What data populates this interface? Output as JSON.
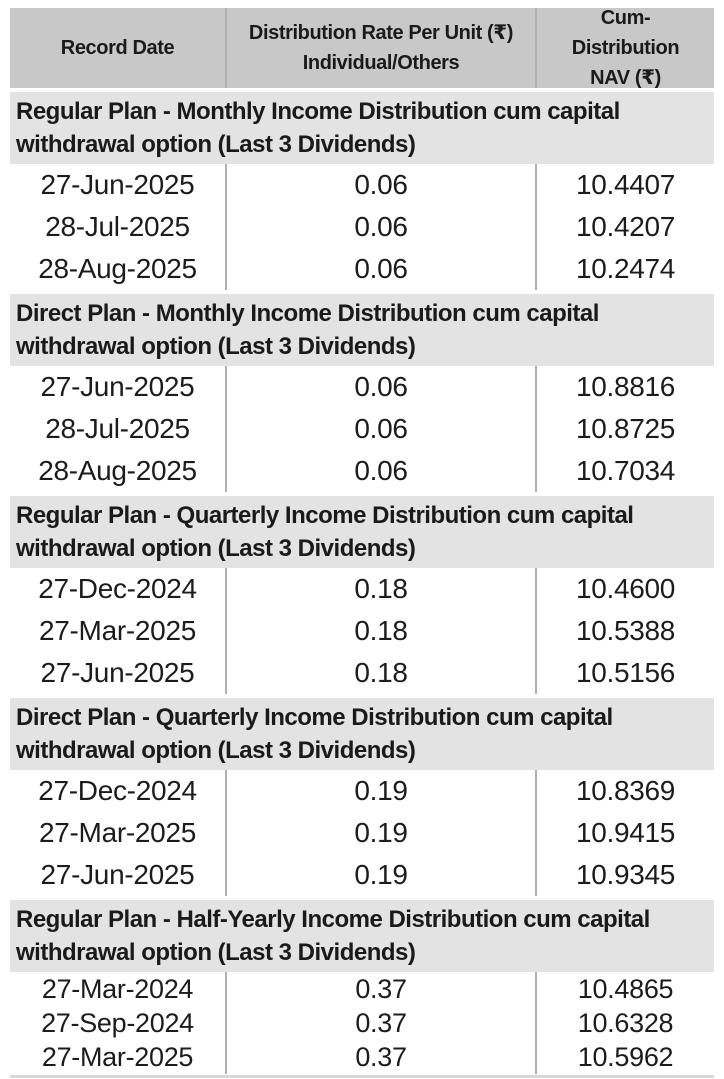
{
  "colors": {
    "header_bg": "#c8c8c8",
    "section_bg": "#e3e3e3",
    "divider": "#b0b0b0",
    "text": "#1a1a1a"
  },
  "header": {
    "record_date": "Record Date",
    "rate_line1": "Distribution Rate Per Unit  (₹)",
    "rate_line2": "Individual/Others",
    "nav": "Cum-Distribution NAV (₹)"
  },
  "sections": [
    {
      "title": "Regular Plan - Monthly Income Distribution cum capital withdrawal option (Last 3 Dividends)",
      "rows": [
        {
          "date": "27-Jun-2025",
          "rate": "0.06",
          "nav": "10.4407"
        },
        {
          "date": "28-Jul-2025",
          "rate": "0.06",
          "nav": "10.4207"
        },
        {
          "date": "28-Aug-2025",
          "rate": "0.06",
          "nav": "10.2474"
        }
      ]
    },
    {
      "title": "Direct Plan - Monthly Income Distribution cum capital withdrawal option (Last 3 Dividends)",
      "rows": [
        {
          "date": "27-Jun-2025",
          "rate": "0.06",
          "nav": "10.8816"
        },
        {
          "date": "28-Jul-2025",
          "rate": "0.06",
          "nav": "10.8725"
        },
        {
          "date": "28-Aug-2025",
          "rate": "0.06",
          "nav": "10.7034"
        }
      ]
    },
    {
      "title": "Regular Plan - Quarterly Income Distribution cum capital withdrawal option (Last 3 Dividends)",
      "rows": [
        {
          "date": "27-Dec-2024",
          "rate": "0.18",
          "nav": "10.4600"
        },
        {
          "date": "27-Mar-2025",
          "rate": "0.18",
          "nav": "10.5388"
        },
        {
          "date": "27-Jun-2025",
          "rate": "0.18",
          "nav": "10.5156"
        }
      ]
    },
    {
      "title": "Direct Plan - Quarterly Income Distribution cum capital withdrawal option (Last 3 Dividends)",
      "rows": [
        {
          "date": "27-Dec-2024",
          "rate": "0.19",
          "nav": "10.8369"
        },
        {
          "date": "27-Mar-2025",
          "rate": "0.19",
          "nav": "10.9415"
        },
        {
          "date": "27-Jun-2025",
          "rate": "0.19",
          "nav": "10.9345"
        }
      ]
    },
    {
      "title": "Regular Plan - Half-Yearly Income Distribution cum capital withdrawal option (Last 3 Dividends)",
      "rows": [
        {
          "date": "27-Mar-2024",
          "rate": "0.37",
          "nav": "10.4865"
        },
        {
          "date": "27-Sep-2024",
          "rate": "0.37",
          "nav": "10.6328"
        },
        {
          "date": "27-Mar-2025",
          "rate": "0.37",
          "nav": "10.5962"
        }
      ]
    }
  ]
}
